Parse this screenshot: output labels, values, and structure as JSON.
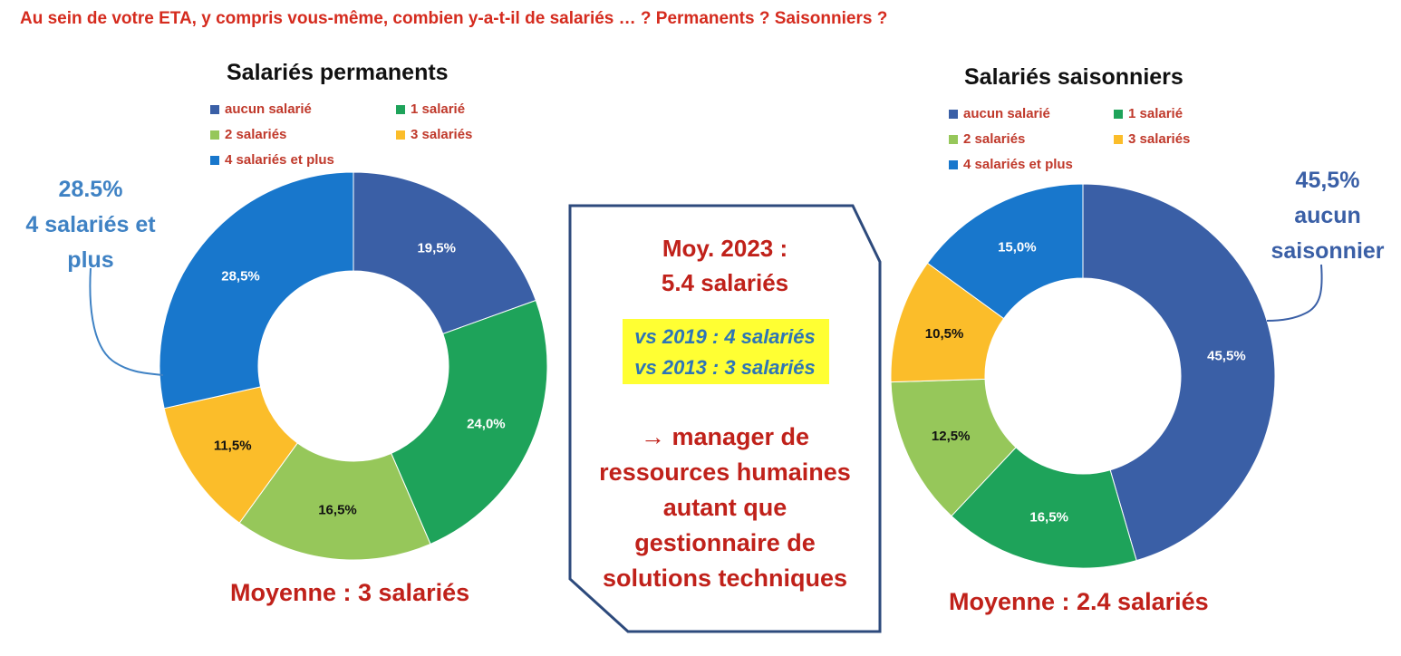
{
  "question": "Au sein de votre ETA, y compris vous-même, combien y-a-t-il de salariés … ? Permanents ? Saisonniers ?",
  "legend_labels": [
    "aucun salarié",
    "1 salarié",
    "2 salariés",
    "3 salariés",
    "4 salariés et plus"
  ],
  "colors": {
    "aucun": "#3a5fa6",
    "un": "#1ea35a",
    "deux": "#96c75a",
    "trois": "#fbbd2a",
    "quatre": "#1877cc",
    "accent_red": "#c0211a",
    "callout_blue": "#3f82c4"
  },
  "permanents": {
    "title": "Salariés permanents",
    "callout": [
      "28.5%",
      "4 salariés et",
      "plus"
    ],
    "moyenne": "Moyenne : 3 salariés"
  },
  "saisonniers": {
    "title": "Salariés saisonniers",
    "callout": [
      "45,5%",
      "aucun",
      "saisonnier"
    ],
    "moyenne": "Moyenne : 2.4 salariés"
  },
  "center": {
    "moy_line1": "Moy. 2023 :",
    "moy_line2": "5.4 salariés",
    "vs_2019": "vs 2019 : 4 salariés",
    "vs_2013": "vs 2013 : 3 salariés",
    "conclusion": [
      "→ manager de",
      "ressources humaines",
      "autant que",
      "gestionnaire de",
      "solutions techniques"
    ]
  },
  "chart_data": [
    {
      "type": "pie",
      "title": "Salariés permanents",
      "categories": [
        "aucun salarié",
        "1 salarié",
        "2 salariés",
        "3 salariés",
        "4 salariés et plus"
      ],
      "values": [
        19.5,
        24.0,
        16.5,
        11.5,
        28.5
      ],
      "labels": [
        "19,5%",
        "24,0%",
        "16,5%",
        "11,5%",
        "28,5%"
      ],
      "legend": "top"
    },
    {
      "type": "pie",
      "title": "Salariés saisonniers",
      "categories": [
        "aucun salarié",
        "1 salarié",
        "2 salariés",
        "3 salariés",
        "4 salariés et plus"
      ],
      "values": [
        45.5,
        16.5,
        12.5,
        10.5,
        15.0
      ],
      "labels": [
        "45,5%",
        "16,5%",
        "12,5%",
        "10,5%",
        "15,0%"
      ],
      "legend": "top"
    }
  ]
}
